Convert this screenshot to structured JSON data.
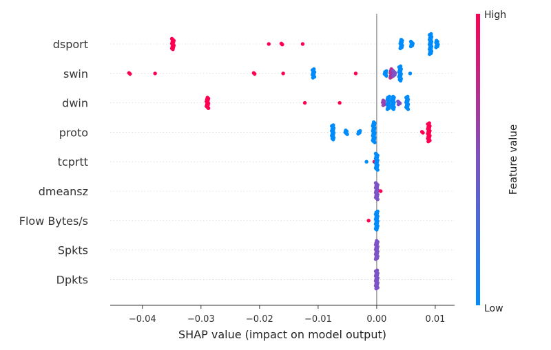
{
  "chart_data": {
    "type": "scatter",
    "title": "",
    "xlabel": "SHAP value (impact on model output)",
    "ylabel": "",
    "xlim": [
      -0.0455,
      0.0133
    ],
    "x_ticks": [
      "−0.04",
      "−0.03",
      "−0.02",
      "−0.01",
      "0.00",
      "0.01"
    ],
    "x_tick_values": [
      -0.04,
      -0.03,
      -0.02,
      -0.01,
      0.0,
      0.01
    ],
    "features": [
      "dsport",
      "swin",
      "dwin",
      "proto",
      "tcprtt",
      "dmeansz",
      "Flow Bytes/s",
      "Spkts",
      "Dpkts"
    ],
    "colorbar": {
      "label": "Feature value",
      "high_label": "High",
      "low_label": "Low",
      "low_color": "#008bfb",
      "mid_color": "#7c52c6",
      "high_color": "#ff0051"
    },
    "series": [
      {
        "feature": "dsport",
        "points": [
          {
            "x": -0.0348,
            "c": 1,
            "n": 12
          },
          {
            "x": -0.0185,
            "c": 1,
            "n": 1
          },
          {
            "x": -0.0162,
            "c": 1,
            "n": 2
          },
          {
            "x": -0.0128,
            "c": 1,
            "n": 1
          },
          {
            "x": 0.0042,
            "c": 0,
            "n": 10
          },
          {
            "x": 0.006,
            "c": 0,
            "n": 6
          },
          {
            "x": 0.0092,
            "c": 0,
            "n": 22
          },
          {
            "x": 0.0103,
            "c": 0,
            "n": 8
          }
        ]
      },
      {
        "feature": "swin",
        "points": [
          {
            "x": -0.0422,
            "c": 1,
            "n": 2
          },
          {
            "x": -0.038,
            "c": 1,
            "n": 1
          },
          {
            "x": -0.021,
            "c": 1,
            "n": 2
          },
          {
            "x": -0.0158,
            "c": 1,
            "n": 1
          },
          {
            "x": -0.0108,
            "c": 0,
            "n": 10
          },
          {
            "x": -0.0035,
            "c": 1,
            "n": 1
          },
          {
            "x": 0.0015,
            "c": 0,
            "n": 6
          },
          {
            "x": 0.0025,
            "c": 0.7,
            "n": 10
          },
          {
            "x": 0.003,
            "c": 0.5,
            "n": 6
          },
          {
            "x": 0.004,
            "c": 0,
            "n": 16
          },
          {
            "x": 0.0058,
            "c": 0,
            "n": 1
          }
        ]
      },
      {
        "feature": "dwin",
        "points": [
          {
            "x": -0.0289,
            "c": 1,
            "n": 12
          },
          {
            "x": -0.0121,
            "c": 1,
            "n": 1
          },
          {
            "x": -0.0064,
            "c": 1,
            "n": 1
          },
          {
            "x": 0.0012,
            "c": 0.6,
            "n": 6
          },
          {
            "x": 0.002,
            "c": 0,
            "n": 14
          },
          {
            "x": 0.0028,
            "c": 0,
            "n": 14
          },
          {
            "x": 0.0038,
            "c": 0.5,
            "n": 4
          },
          {
            "x": 0.0052,
            "c": 0,
            "n": 14
          }
        ]
      },
      {
        "feature": "proto",
        "points": [
          {
            "x": -0.0075,
            "c": 0,
            "n": 16
          },
          {
            "x": -0.0052,
            "c": 0,
            "n": 5
          },
          {
            "x": -0.003,
            "c": 0,
            "n": 4
          },
          {
            "x": -0.0005,
            "c": 0,
            "n": 22
          },
          {
            "x": 0.0079,
            "c": 1,
            "n": 2
          },
          {
            "x": 0.0089,
            "c": 1,
            "n": 20
          }
        ]
      },
      {
        "feature": "tcprtt",
        "points": [
          {
            "x": -0.0019,
            "c": 0,
            "n": 1
          },
          {
            "x": -0.0004,
            "c": 1,
            "n": 1
          },
          {
            "x": 0.0,
            "c": 0,
            "n": 18
          }
        ]
      },
      {
        "feature": "dmeansz",
        "points": [
          {
            "x": 0.0,
            "c": 0.5,
            "n": 18
          },
          {
            "x": 0.0006,
            "c": 1,
            "n": 1
          }
        ]
      },
      {
        "feature": "Flow Bytes/s",
        "points": [
          {
            "x": -0.0013,
            "c": 1,
            "n": 1
          },
          {
            "x": 0.0,
            "c": 0,
            "n": 20
          }
        ]
      },
      {
        "feature": "Spkts",
        "points": [
          {
            "x": 0.0,
            "c": 0.5,
            "n": 20
          }
        ]
      },
      {
        "feature": "Dpkts",
        "points": [
          {
            "x": 0.0,
            "c": 0.5,
            "n": 20
          }
        ]
      }
    ]
  }
}
